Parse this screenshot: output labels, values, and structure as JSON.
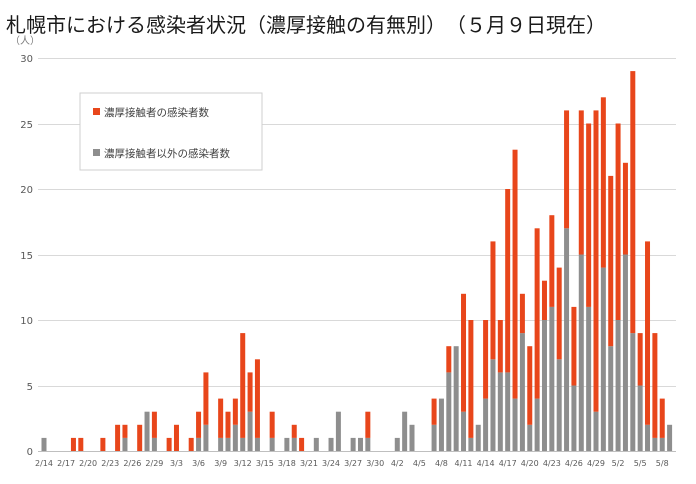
{
  "chart_data": {
    "type": "bar",
    "stacked": true,
    "title": "札幌市における感染者状況（濃厚接触の有無別）　（５月９日現在）",
    "xlabel": "",
    "ylabel": "（人）",
    "ylim": [
      0,
      30
    ],
    "yticks": [
      0,
      5,
      10,
      15,
      20,
      25,
      30
    ],
    "grid": true,
    "legend_position": "top-left",
    "x": [
      "2/14",
      "2/15",
      "2/16",
      "2/17",
      "2/18",
      "2/19",
      "2/20",
      "2/21",
      "2/22",
      "2/23",
      "2/24",
      "2/25",
      "2/26",
      "2/27",
      "2/28",
      "2/29",
      "3/1",
      "3/2",
      "3/3",
      "3/4",
      "3/5",
      "3/6",
      "3/7",
      "3/8",
      "3/9",
      "3/10",
      "3/11",
      "3/12",
      "3/13",
      "3/14",
      "3/15",
      "3/16",
      "3/17",
      "3/18",
      "3/19",
      "3/20",
      "3/21",
      "3/22",
      "3/23",
      "3/24",
      "3/25",
      "3/26",
      "3/27",
      "3/28",
      "3/29",
      "3/30",
      "3/31",
      "4/1",
      "4/2",
      "4/3",
      "4/4",
      "4/5",
      "4/6",
      "4/7",
      "4/8",
      "4/9",
      "4/10",
      "4/11",
      "4/12",
      "4/13",
      "4/14",
      "4/15",
      "4/16",
      "4/17",
      "4/18",
      "4/19",
      "4/20",
      "4/21",
      "4/22",
      "4/23",
      "4/24",
      "4/25",
      "4/26",
      "4/27",
      "4/28",
      "4/29",
      "4/30",
      "5/1",
      "5/2",
      "5/3",
      "5/4",
      "5/5",
      "5/6",
      "5/7",
      "5/8",
      "5/9"
    ],
    "series": [
      {
        "name": "濃厚接触者の感染者数",
        "color": "#E8461B",
        "values": [
          0,
          0,
          0,
          0,
          1,
          1,
          0,
          0,
          1,
          0,
          2,
          1,
          0,
          2,
          0,
          2,
          0,
          1,
          2,
          0,
          1,
          2,
          4,
          0,
          3,
          2,
          2,
          8,
          3,
          6,
          0,
          2,
          0,
          0,
          1,
          1,
          0,
          0,
          0,
          0,
          0,
          0,
          0,
          0,
          2,
          0,
          0,
          0,
          0,
          0,
          0,
          0,
          0,
          2,
          0,
          2,
          0,
          9,
          9,
          0,
          6,
          9,
          4,
          14,
          19,
          3,
          6,
          13,
          3,
          7,
          7,
          9,
          6,
          11,
          14,
          23,
          13,
          13,
          15,
          7,
          20,
          4,
          14,
          8,
          3,
          0
        ]
      },
      {
        "name": "濃厚接触者以外の感染者数",
        "color": "#8E8E8E",
        "values": [
          1,
          0,
          0,
          0,
          0,
          0,
          0,
          0,
          0,
          0,
          0,
          1,
          0,
          0,
          3,
          1,
          0,
          0,
          0,
          0,
          0,
          1,
          2,
          0,
          1,
          1,
          2,
          1,
          3,
          1,
          0,
          1,
          0,
          1,
          1,
          0,
          0,
          1,
          0,
          1,
          3,
          0,
          1,
          1,
          1,
          0,
          0,
          0,
          1,
          3,
          2,
          0,
          0,
          2,
          4,
          6,
          8,
          3,
          1,
          2,
          4,
          7,
          6,
          6,
          4,
          9,
          2,
          4,
          10,
          11,
          7,
          17,
          5,
          15,
          11,
          3,
          14,
          8,
          10,
          15,
          9,
          5,
          2,
          1,
          1,
          2
        ]
      }
    ]
  }
}
